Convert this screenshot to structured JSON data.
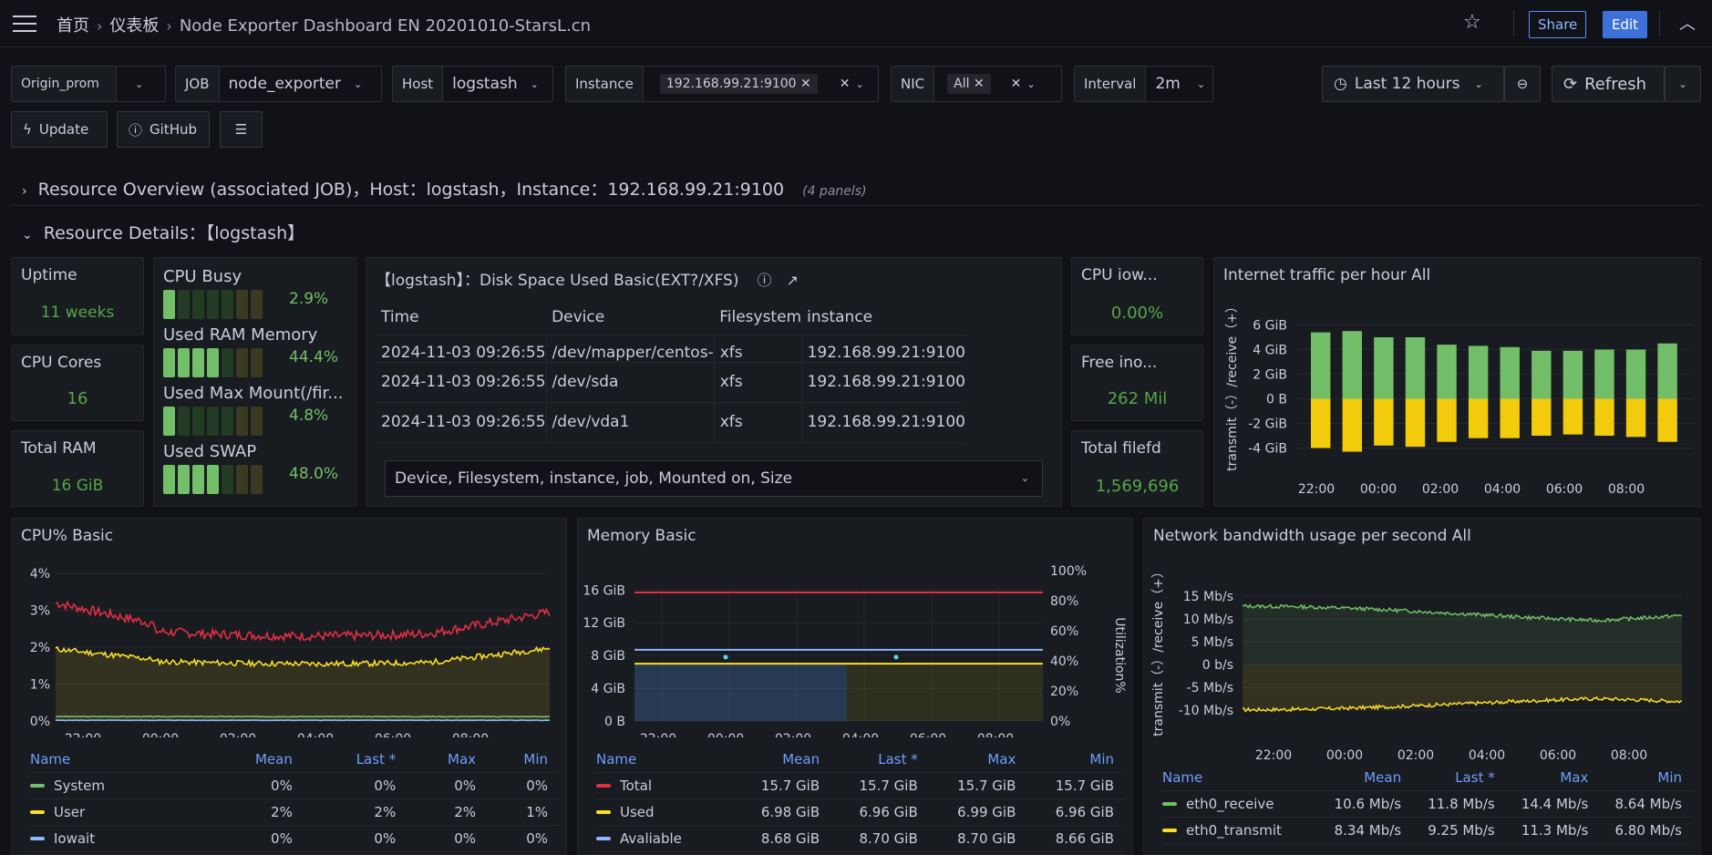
{
  "header": {
    "breadcrumbs": [
      "首页",
      "仪表板",
      "Node Exporter Dashboard EN 20201010-StarsL.cn"
    ],
    "share_label": "Share",
    "edit_label": "Edit"
  },
  "variables": {
    "origin_prom": "Origin_prom",
    "job_label": "JOB",
    "job_value": "node_exporter",
    "host_label": "Host",
    "host_value": "logstash",
    "instance_label": "Instance",
    "instance_value": "192.168.99.21:9100",
    "nic_label": "NIC",
    "nic_value": "All",
    "interval_label": "Interval",
    "interval_value": "2m",
    "time_range": "Last 12 hours",
    "refresh_label": "Refresh",
    "update_label": "Update",
    "github_label": "GitHub"
  },
  "rows": {
    "overview_title": "Resource Overview (associated JOB)，Host：logstash，Instance：192.168.99.21:9100",
    "overview_sub": "(4 panels)",
    "details_title": "Resource Details：【logstash】"
  },
  "stats": {
    "uptime_title": "Uptime",
    "uptime_value": "11 weeks",
    "cpu_cores_title": "CPU Cores",
    "cpu_cores_value": "16",
    "total_ram_title": "Total RAM",
    "total_ram_value": "16 GiB",
    "cpu_iowait_title": "CPU iow...",
    "cpu_iowait_value": "0.00%",
    "free_inodes_title": "Free ino...",
    "free_inodes_value": "262 Mil",
    "total_filefd_title": "Total filefd",
    "total_filefd_value": "1,569,696"
  },
  "gauges": [
    {
      "label": "CPU Busy",
      "pct": "2.9%",
      "lit": 1
    },
    {
      "label": "Used RAM Memory",
      "pct": "44.4%",
      "lit": 4
    },
    {
      "label": "Used Max Mount(/fir...",
      "pct": "4.8%",
      "lit": 1
    },
    {
      "label": "Used SWAP",
      "pct": "48.0%",
      "lit": 4
    }
  ],
  "disk_table": {
    "title": "【logstash】：Disk Space Used Basic(EXT?/XFS)",
    "headers": [
      "Time",
      "Device",
      "Filesystem",
      "instance"
    ],
    "rows": [
      [
        "2024-11-03 09:26:55",
        "/dev/mapper/centos-",
        "xfs",
        "192.168.99.21:9100"
      ],
      [
        "2024-11-03 09:26:55",
        "/dev/sda",
        "xfs",
        "192.168.99.21:9100"
      ],
      [
        "2024-11-03 09:26:55",
        "/dev/vda1",
        "xfs",
        "192.168.99.21:9100"
      ]
    ],
    "columns_select": "Device, Filesystem, instance, job, Mounted on, Size"
  },
  "colors": {
    "green": "#73bf69",
    "yellow": "#fade2a",
    "red": "#f2495c",
    "blue": "#8ab8ff",
    "cyan": "#5794f2"
  },
  "chart_data": [
    {
      "type": "bar",
      "title": "Internet traffic per hour All",
      "ylabel": "transmit（-）/receive（+）",
      "x_ticks": [
        "22:00",
        "00:00",
        "02:00",
        "04:00",
        "06:00",
        "08:00"
      ],
      "y_ticks": [
        "6 GiB",
        "4 GiB",
        "2 GiB",
        "0 B",
        "-2 GiB",
        "-4 GiB"
      ],
      "ylim": [
        -5,
        7
      ],
      "series": [
        {
          "values": [
            5.4,
            5.5,
            5.0,
            5.0,
            4.4,
            4.3,
            4.2,
            3.9,
            3.9,
            4.0,
            4.0,
            4.5
          ]
        },
        {
          "values": [
            -4.0,
            -4.3,
            -3.8,
            -3.9,
            -3.5,
            -3.2,
            -3.2,
            -3.0,
            -2.9,
            -3.0,
            -3.1,
            -3.5
          ]
        }
      ]
    },
    {
      "type": "line",
      "title": "CPU% Basic",
      "y_ticks": [
        "4%",
        "3%",
        "2%",
        "1%",
        "0%"
      ],
      "x_ticks": [
        "22:00",
        "00:00",
        "02:00",
        "04:00",
        "06:00",
        "08:00"
      ],
      "ylim": [
        0,
        4
      ],
      "series": [
        {
          "name": "System",
          "mean": "0%",
          "last": "0%",
          "max": "0%",
          "min": "0%"
        },
        {
          "name": "User",
          "mean": "2%",
          "last": "2%",
          "max": "2%",
          "min": "1%"
        },
        {
          "name": "Iowait",
          "mean": "0%",
          "last": "0%",
          "max": "0%",
          "min": "0%"
        }
      ],
      "legend_headers": [
        "Name",
        "Mean",
        "Last *",
        "Max",
        "Min"
      ]
    },
    {
      "type": "line",
      "title": "Memory Basic",
      "y_ticks": [
        "16 GiB",
        "12 GiB",
        "8 GiB",
        "4 GiB",
        "0 B"
      ],
      "y2_ticks": [
        "100%",
        "80%",
        "60%",
        "40%",
        "20%",
        "0%"
      ],
      "y2label": "Utilization%",
      "x_ticks": [
        "22:00",
        "00:00",
        "02:00",
        "04:00",
        "06:00",
        "08:00"
      ],
      "series": [
        {
          "name": "Total",
          "mean": "15.7 GiB",
          "last": "15.7 GiB",
          "max": "15.7 GiB",
          "min": "15.7 GiB"
        },
        {
          "name": "Used",
          "mean": "6.98 GiB",
          "last": "6.96 GiB",
          "max": "6.99 GiB",
          "min": "6.96 GiB"
        },
        {
          "name": "Avaliable",
          "mean": "8.68 GiB",
          "last": "8.70 GiB",
          "max": "8.70 GiB",
          "min": "8.66 GiB"
        }
      ],
      "legend_headers": [
        "Name",
        "Mean",
        "Last *",
        "Max",
        "Min"
      ]
    },
    {
      "type": "line",
      "title": "Network bandwidth usage per second All",
      "ylabel": "transmit（-）/receive（+）",
      "y_ticks": [
        "15 Mb/s",
        "10 Mb/s",
        "5 Mb/s",
        "0 b/s",
        "-5 Mb/s",
        "-10 Mb/s"
      ],
      "x_ticks": [
        "22:00",
        "00:00",
        "02:00",
        "04:00",
        "06:00",
        "08:00"
      ],
      "series": [
        {
          "name": "eth0_receive",
          "mean": "10.6 Mb/s",
          "last": "11.8 Mb/s",
          "max": "14.4 Mb/s",
          "min": "8.64 Mb/s"
        },
        {
          "name": "eth0_transmit",
          "mean": "8.34 Mb/s",
          "last": "9.25 Mb/s",
          "max": "11.3 Mb/s",
          "min": "6.80 Mb/s"
        }
      ],
      "legend_headers": [
        "Name",
        "Mean",
        "Last *",
        "Max",
        "Min"
      ]
    }
  ]
}
